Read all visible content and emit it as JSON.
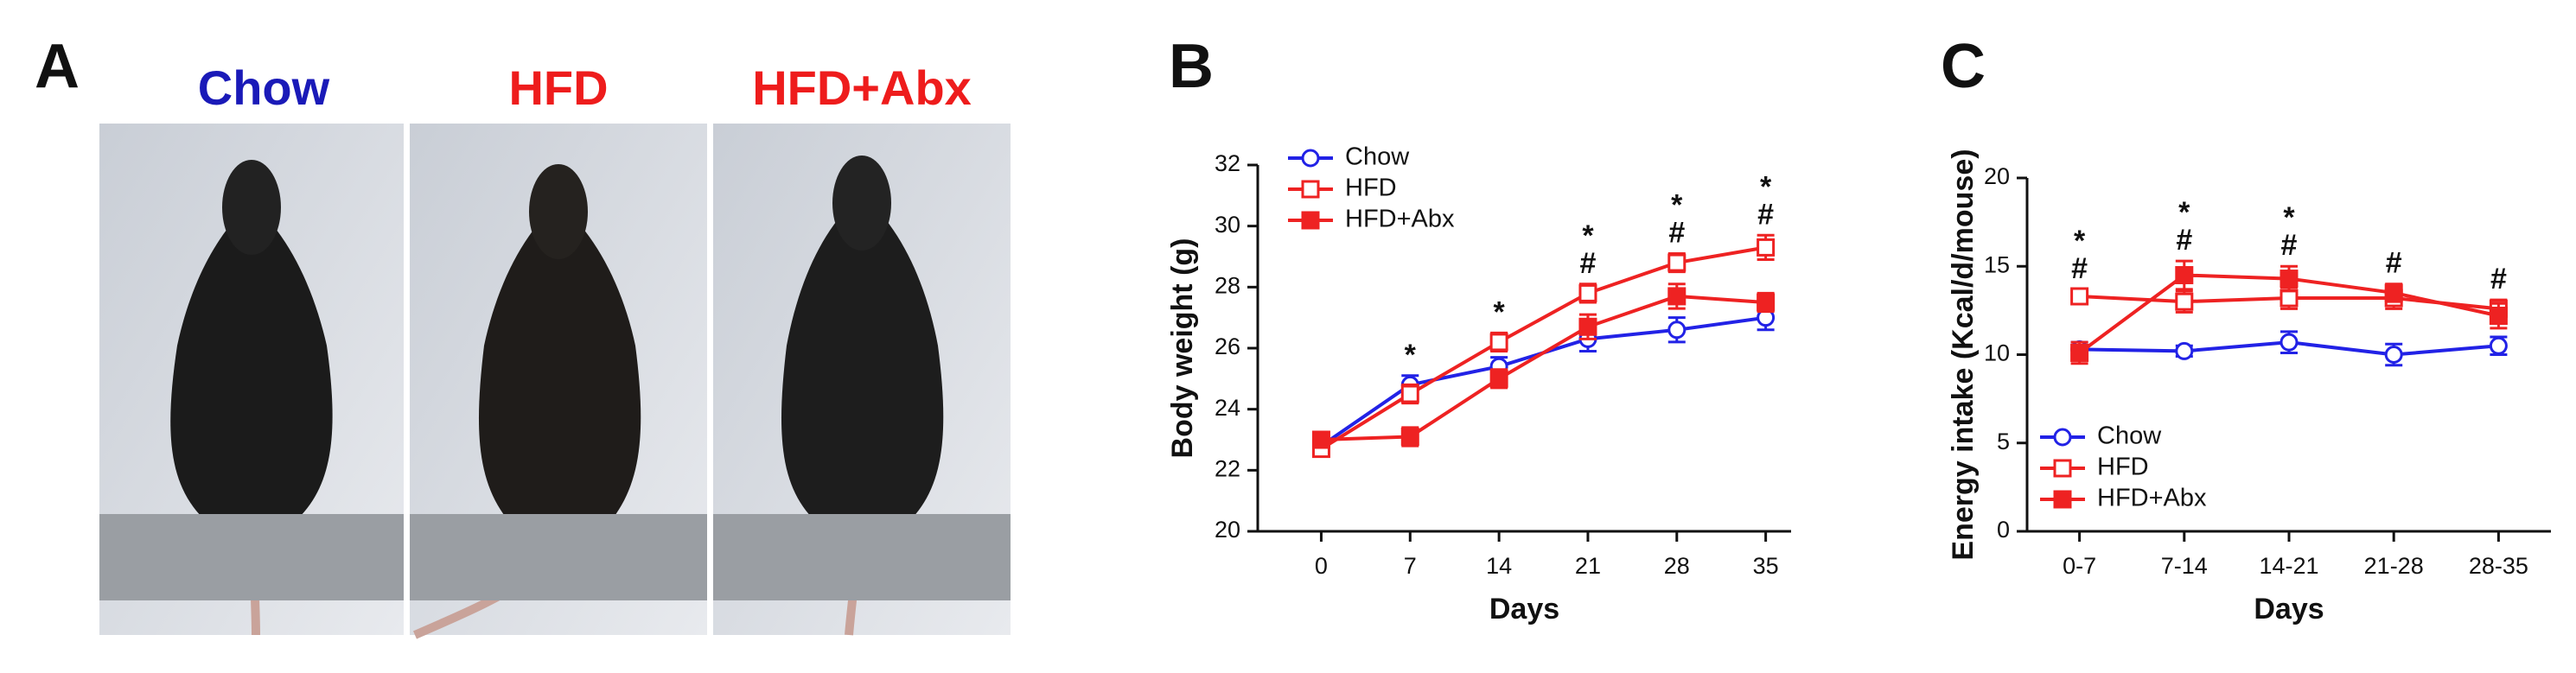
{
  "figure": {
    "panel_labels": [
      "A",
      "B",
      "C"
    ],
    "photo_labels": [
      {
        "text": "Chow",
        "color": "#1a1ab8"
      },
      {
        "text": "HFD",
        "color": "#ee1c1c"
      },
      {
        "text": "HFD+Abx",
        "color": "#ee1c1c"
      }
    ]
  },
  "chart_data": [
    {
      "type": "line",
      "x_label": "Days",
      "y_label": "Body weight (g)",
      "x": [
        0,
        7,
        14,
        21,
        28,
        35
      ],
      "xlim": [
        -5,
        37
      ],
      "xticks": [
        0,
        7,
        14,
        21,
        28,
        35
      ],
      "ylim": [
        20,
        32
      ],
      "yticks": [
        20,
        22,
        24,
        26,
        28,
        30,
        32
      ],
      "legend": "upper-left",
      "series": [
        {
          "name": "Chow",
          "color": "#2222e6",
          "marker": "circle-open",
          "values": [
            22.8,
            24.8,
            25.4,
            26.3,
            26.6,
            27.0
          ],
          "errors": [
            0.2,
            0.3,
            0.3,
            0.4,
            0.4,
            0.4
          ]
        },
        {
          "name": "HFD",
          "color": "#ee2222",
          "marker": "square-open",
          "values": [
            22.7,
            24.5,
            26.2,
            27.8,
            28.8,
            29.3
          ],
          "errors": [
            0.2,
            0.3,
            0.3,
            0.3,
            0.3,
            0.4
          ]
        },
        {
          "name": "HFD+Abx",
          "color": "#ee2222",
          "marker": "square-filled",
          "values": [
            23.0,
            23.1,
            25.0,
            26.7,
            27.7,
            27.5
          ],
          "errors": [
            0.2,
            0.3,
            0.3,
            0.4,
            0.4,
            0.3
          ]
        }
      ],
      "annotations": [
        {
          "x": 7,
          "labels": [
            "*"
          ]
        },
        {
          "x": 14,
          "labels": [
            "*"
          ]
        },
        {
          "x": 21,
          "labels": [
            "*",
            "#"
          ]
        },
        {
          "x": 28,
          "labels": [
            "*",
            "#"
          ]
        },
        {
          "x": 35,
          "labels": [
            "*",
            "#"
          ]
        }
      ]
    },
    {
      "type": "line",
      "x_label": "Days",
      "y_label": "Energy intake (Kcal/d/mouse)",
      "categories": [
        "0-7",
        "7-14",
        "14-21",
        "21-28",
        "28-35"
      ],
      "ylim": [
        0,
        20
      ],
      "yticks": [
        0,
        5,
        10,
        15,
        20
      ],
      "legend": "lower-left",
      "series": [
        {
          "name": "Chow",
          "color": "#2222e6",
          "marker": "circle-open",
          "values": [
            10.3,
            10.2,
            10.7,
            10.0,
            10.5
          ],
          "errors": [
            0.4,
            0.3,
            0.6,
            0.6,
            0.5
          ]
        },
        {
          "name": "HFD",
          "color": "#ee2222",
          "marker": "square-open",
          "values": [
            13.3,
            13.0,
            13.2,
            13.2,
            12.6
          ],
          "errors": [
            0.4,
            0.6,
            0.6,
            0.6,
            0.5
          ]
        },
        {
          "name": "HFD+Abx",
          "color": "#ee2222",
          "marker": "square-filled",
          "values": [
            10.1,
            14.5,
            14.3,
            13.5,
            12.2
          ],
          "errors": [
            0.6,
            0.8,
            0.7,
            0.5,
            0.7
          ]
        }
      ],
      "annotations": [
        {
          "x": 0,
          "labels": [
            "*",
            "#"
          ]
        },
        {
          "x": 1,
          "labels": [
            "*",
            "#"
          ]
        },
        {
          "x": 2,
          "labels": [
            "*",
            "#"
          ]
        },
        {
          "x": 3,
          "labels": [
            "#"
          ]
        },
        {
          "x": 4,
          "labels": [
            "#"
          ]
        }
      ]
    }
  ]
}
